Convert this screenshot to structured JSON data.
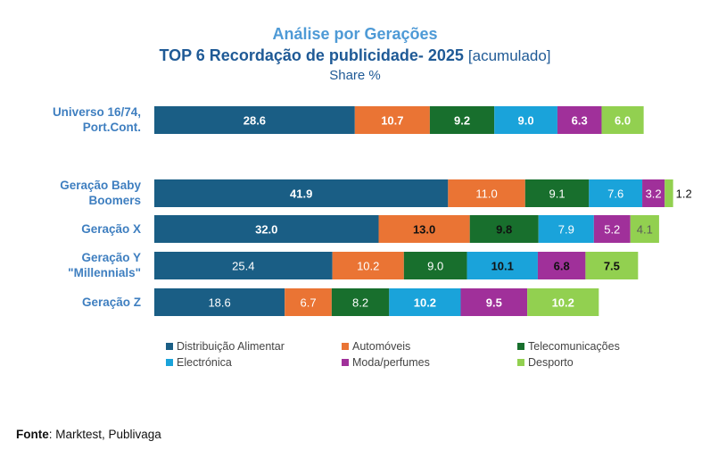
{
  "chart_data": {
    "type": "bar",
    "orientation": "horizontal-stacked",
    "title": "Análise por Gerações",
    "subtitle_main": "TOP 6 Recordação de publicidade- 2025",
    "subtitle_suffix": "[acumulado]",
    "subtitle_unit": "Share %",
    "categories": [
      {
        "line1": "Universo 16/74,",
        "line2": "Port.Cont."
      },
      {
        "line1": "Geração Baby",
        "line2": "Boomers"
      },
      {
        "line1": "Geração X",
        "line2": ""
      },
      {
        "line1": "Geração Y",
        "line2": "\"Millennials\""
      },
      {
        "line1": "Geração Z",
        "line2": ""
      }
    ],
    "series": [
      {
        "name": "Distribuição Alimentar",
        "color": "#1a5e85",
        "values": [
          28.6,
          41.9,
          32.0,
          25.4,
          18.6
        ],
        "labels": [
          "28.6",
          "41.9",
          "32.0",
          "25.4",
          "18.6"
        ]
      },
      {
        "name": "Automóveis",
        "color": "#ea7434",
        "values": [
          10.7,
          11.0,
          13.0,
          10.2,
          6.7
        ],
        "labels": [
          "10.7",
          "11.0",
          "13.0",
          "10.2",
          "6.7"
        ]
      },
      {
        "name": "Telecomunicações",
        "color": "#186f2d",
        "values": [
          9.2,
          9.1,
          9.8,
          9.0,
          8.2
        ],
        "labels": [
          "9.2",
          "9.1",
          "9.8",
          "9.0",
          "8.2"
        ]
      },
      {
        "name": "Electrónica",
        "color": "#1aa3da",
        "values": [
          9.0,
          7.6,
          7.9,
          10.1,
          10.2
        ],
        "labels": [
          "9.0",
          "7.6",
          "7.9",
          "10.1",
          "10.2"
        ]
      },
      {
        "name": "Moda/perfumes",
        "color": "#a0309a",
        "values": [
          6.3,
          3.2,
          5.2,
          6.8,
          9.5
        ],
        "labels": [
          "6.3",
          "3.2",
          "5.2",
          "6.8",
          "9.5"
        ]
      },
      {
        "name": "Desporto",
        "color": "#92d050",
        "values": [
          6.0,
          1.2,
          4.1,
          7.5,
          10.2
        ],
        "labels": [
          "6.0",
          "1.2",
          "4.1",
          "7.5",
          "10.2"
        ]
      }
    ],
    "label_style": [
      [
        "bold-white",
        "bold-white",
        "bold-white",
        "bold-white",
        "bold-white",
        "bold-white"
      ],
      [
        "bold-white",
        "white",
        "white",
        "white",
        "white",
        "outside-dark"
      ],
      [
        "bold-white",
        "bold-dark",
        "bold-dark",
        "white",
        "white",
        "muted"
      ],
      [
        "white",
        "white",
        "white",
        "bold-dark",
        "bold-dark",
        "bold-dark"
      ],
      [
        "white",
        "white",
        "white",
        "bold-white",
        "bold-white",
        "bold-white"
      ]
    ],
    "legend_position": "bottom"
  },
  "source": {
    "label": "Fonte",
    "text": ": Marktest, Publivaga"
  }
}
